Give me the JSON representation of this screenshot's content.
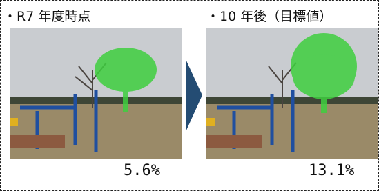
{
  "left": {
    "title": "・R7 年度時点",
    "value": "5.6%"
  },
  "right": {
    "title": "・10 年後（目標値）",
    "value": "13.1%"
  }
}
